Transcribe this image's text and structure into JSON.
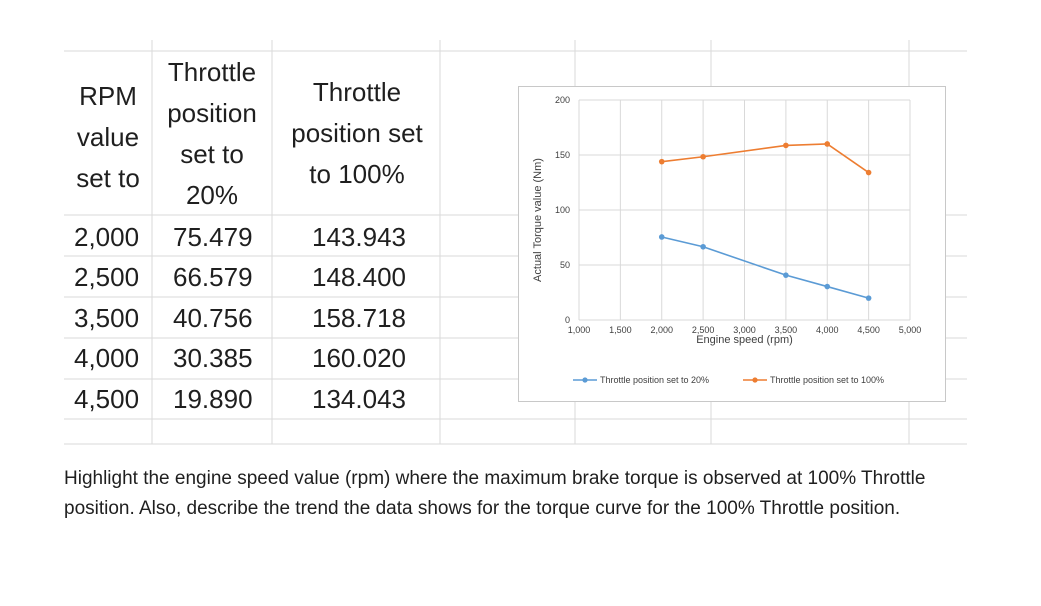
{
  "table": {
    "headers": [
      [
        "RPM",
        "value",
        "set to"
      ],
      [
        "Throttle",
        "position",
        "set to",
        "20%"
      ],
      [
        "Throttle",
        "position set",
        "to 100%"
      ]
    ],
    "rows": [
      [
        "2,000",
        "75.479",
        "143.943"
      ],
      [
        "2,500",
        "66.579",
        "148.400"
      ],
      [
        "3,500",
        "40.756",
        "158.718"
      ],
      [
        "4,000",
        "30.385",
        "160.020"
      ],
      [
        "4,500",
        "19.890",
        "134.043"
      ]
    ]
  },
  "chart_data": {
    "type": "line",
    "xlabel": "Engine speed (rpm)",
    "ylabel": "Actual Torque value (Nm)",
    "xlim": [
      1000,
      5000
    ],
    "ylim": [
      0,
      200
    ],
    "xticks": [
      1000,
      1500,
      2000,
      2500,
      3000,
      3500,
      4000,
      4500,
      5000
    ],
    "xtick_labels": [
      "1,000",
      "1,500",
      "2,000",
      "2,500",
      "3,000",
      "3,500",
      "4,000",
      "4,500",
      "5,000"
    ],
    "yticks": [
      0,
      50,
      100,
      150,
      200
    ],
    "ytick_labels": [
      "0",
      "50",
      "100",
      "150",
      "200"
    ],
    "grid": true,
    "legend_position": "bottom",
    "x": [
      2000,
      2500,
      3500,
      4000,
      4500
    ],
    "series": [
      {
        "name": "Throttle position set to 20%",
        "color": "#5b9bd5",
        "values": [
          75.479,
          66.579,
          40.756,
          30.385,
          19.89
        ]
      },
      {
        "name": "Throttle position set to 100%",
        "color": "#ed7d31",
        "values": [
          143.943,
          148.4,
          158.718,
          160.02,
          134.043
        ]
      }
    ]
  },
  "question": "Highlight the engine speed value (rpm) where the maximum brake torque is observed at 100% Throttle position. Also, describe the trend the data shows for the torque curve for the 100% Throttle position."
}
